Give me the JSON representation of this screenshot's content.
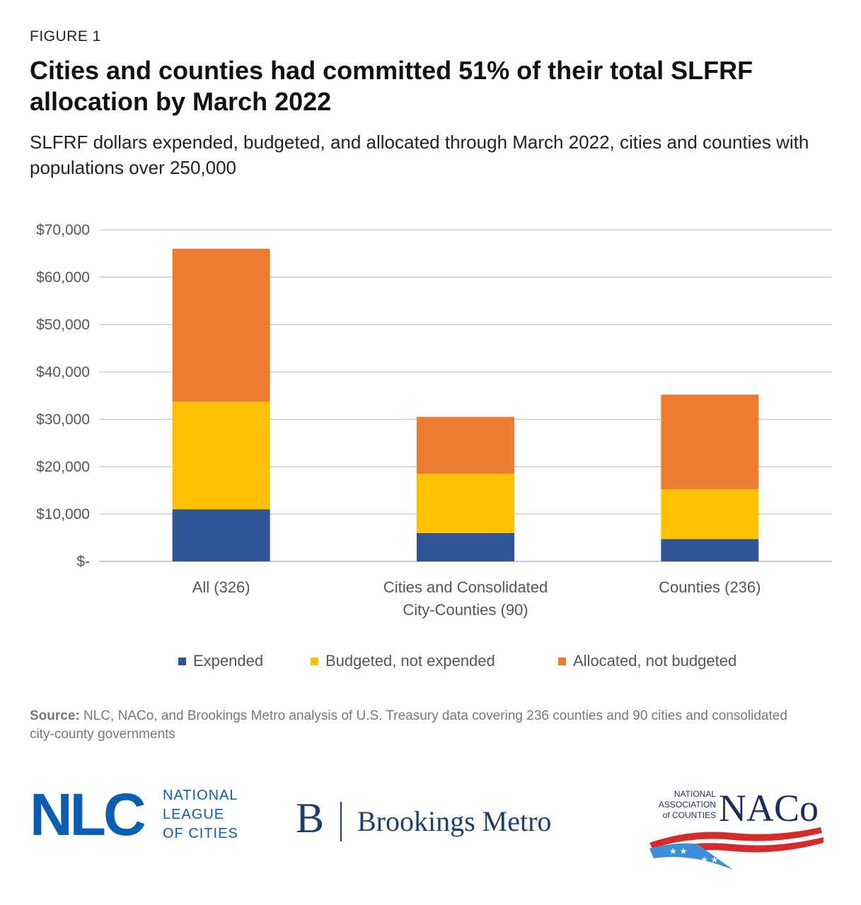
{
  "figure_label": "FIGURE 1",
  "title": "Cities and counties had committed 51% of their total SLFRF allocation by March 2022",
  "subtitle": "SLFRF dollars expended, budgeted, and allocated through March 2022, cities and counties with populations over 250,000",
  "chart_data": {
    "type": "bar",
    "stacked": true,
    "categories": [
      [
        "All (326)"
      ],
      [
        "Cities and Consolidated",
        "City-Counties (90)"
      ],
      [
        "Counties (236)"
      ]
    ],
    "series": [
      {
        "name": "Expended",
        "color": "#2f5597",
        "values": [
          11000,
          6000,
          4700
        ]
      },
      {
        "name": "Budgeted, not expended",
        "color": "#ffc000",
        "values": [
          22700,
          12500,
          10500
        ]
      },
      {
        "name": "Allocated, not budgeted",
        "color": "#ed7d31",
        "values": [
          32300,
          12000,
          20000
        ]
      }
    ],
    "ylim": [
      0,
      70000
    ],
    "yticks": [
      0,
      10000,
      20000,
      30000,
      40000,
      50000,
      60000,
      70000
    ],
    "ytick_labels": [
      "$-",
      "$10,000",
      "$20,000",
      "$30,000",
      "$40,000",
      "$50,000",
      "$60,000",
      "$70,000"
    ],
    "grid": true,
    "legend_position": "bottom",
    "xlabel": "",
    "ylabel": ""
  },
  "source": {
    "label": "Source:",
    "text": " NLC, NACo, and Brookings Metro analysis of U.S. Treasury data covering 236 counties and 90 cities and consolidated city-county governments"
  },
  "logos": {
    "nlc": {
      "mark": "NLC",
      "lines": [
        "NATIONAL",
        "LEAGUE",
        "OF CITIES"
      ]
    },
    "brookings": {
      "mark": "B",
      "text": "Brookings Metro"
    },
    "naco": {
      "lines": [
        "NATIONAL",
        "ASSOCIATION",
        "of COUNTIES"
      ],
      "mark": "NACo"
    }
  }
}
